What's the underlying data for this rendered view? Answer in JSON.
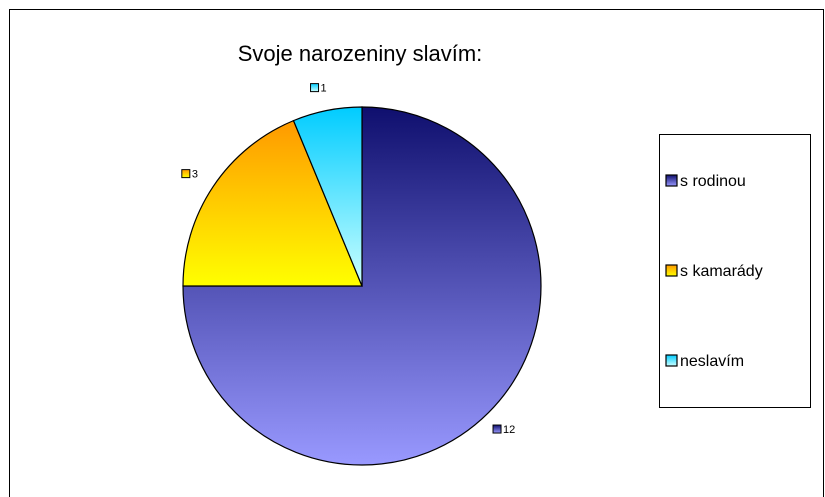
{
  "chart_data": {
    "type": "pie",
    "title": "Svoje narozeniny slavím:",
    "categories": [
      "s rodinou",
      "s kamarády",
      "neslavím"
    ],
    "values": [
      12,
      3,
      1
    ],
    "colors": [
      [
        "#0f0f6e",
        "#9999ff"
      ],
      [
        "#ff9900",
        "#ffff00"
      ],
      [
        "#00ccff",
        "#ccffff"
      ]
    ],
    "legend": "right"
  }
}
